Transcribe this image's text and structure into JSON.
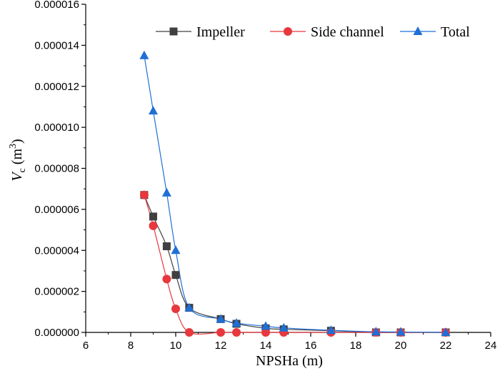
{
  "chart_data": {
    "type": "line",
    "xlabel": "NPSHa (m)",
    "ylabel": {
      "main": "V",
      "sub": "c",
      "unit_open": " (m",
      "unit_sup": "3",
      "unit_close": ")"
    },
    "xlim": [
      6,
      24
    ],
    "ylim": [
      0,
      1.6e-05
    ],
    "x_ticks": [
      "6",
      "8",
      "10",
      "12",
      "14",
      "16",
      "18",
      "20",
      "22",
      "24"
    ],
    "y_ticks": [
      "0.000000",
      "0.000002",
      "0.000004",
      "0.000006",
      "0.000008",
      "0.000010",
      "0.000012",
      "0.000014",
      "0.000016"
    ],
    "legend_position": "top-right",
    "series": [
      {
        "name": "Impeller",
        "color": "#404040",
        "marker": "square",
        "x": [
          8.6,
          9.0,
          9.6,
          10.0,
          10.6,
          12.0,
          12.7,
          14.0,
          14.8,
          16.9,
          18.9,
          20.0,
          22.0
        ],
        "y": [
          6.7e-06,
          5.65e-06,
          4.2e-06,
          2.8e-06,
          1.2e-06,
          6.5e-07,
          4.2e-07,
          2e-07,
          1.5e-07,
          8e-08,
          0.0,
          0.0,
          0.0
        ]
      },
      {
        "name": "Side channel",
        "color": "#e8383d",
        "marker": "circle",
        "x": [
          8.6,
          9.0,
          9.6,
          10.0,
          10.6,
          12.0,
          12.7,
          14.0,
          14.8,
          16.9,
          18.9,
          20.0,
          22.0
        ],
        "y": [
          6.7e-06,
          5.2e-06,
          2.6e-06,
          1.15e-06,
          0.0,
          0.0,
          0.0,
          0.0,
          0.0,
          0.0,
          0.0,
          0.0,
          0.0
        ]
      },
      {
        "name": "Total",
        "color": "#1f6fd6",
        "marker": "triangle",
        "x": [
          8.6,
          9.0,
          9.6,
          10.0,
          10.6,
          12.0,
          12.7,
          14.0,
          14.8,
          16.9,
          18.9,
          20.0,
          22.0
        ],
        "y": [
          1.35e-05,
          1.08e-05,
          6.8e-06,
          4e-06,
          1.2e-06,
          6.5e-07,
          4.5e-07,
          3e-07,
          2.2e-07,
          1e-07,
          3e-08,
          2e-08,
          0.0
        ]
      }
    ]
  }
}
